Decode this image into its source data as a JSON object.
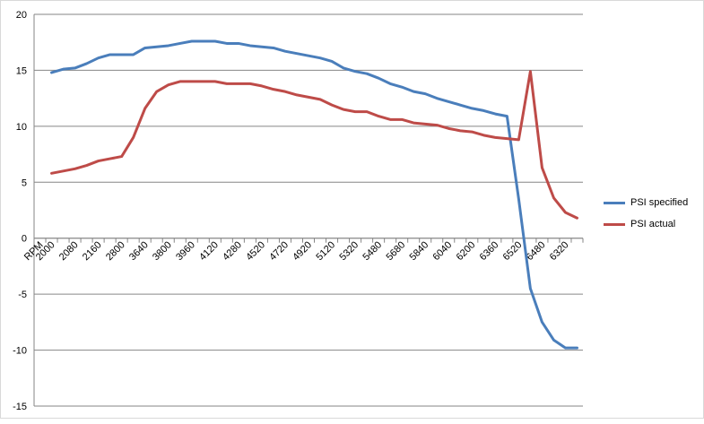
{
  "chart_data": {
    "type": "line",
    "title": "",
    "xlabel": "",
    "ylabel": "",
    "categories": [
      "RPM",
      "2000",
      "",
      "2080",
      "",
      "2160",
      "",
      "2800",
      "",
      "3640",
      "",
      "3800",
      "",
      "3960",
      "",
      "4120",
      "",
      "4280",
      "",
      "4520",
      "",
      "4720",
      "",
      "4920",
      "",
      "5120",
      "",
      "5320",
      "",
      "5480",
      "",
      "5680",
      "",
      "5840",
      "",
      "6040",
      "",
      "6200",
      "",
      "6360",
      "",
      "6520",
      "",
      "6480",
      "",
      "6320",
      ""
    ],
    "ylim": [
      -15,
      20
    ],
    "yticks": [
      "-15",
      "-10",
      "-5",
      "0",
      "5",
      "10",
      "15",
      "20"
    ],
    "yticks_values": [
      -15,
      -10,
      -5,
      0,
      5,
      10,
      15,
      20
    ],
    "grid": true,
    "legend_position": "right",
    "series": [
      {
        "name": "PSI specified",
        "color": "#4a7ebb",
        "values": [
          null,
          14.8,
          15.1,
          15.2,
          15.6,
          16.1,
          16.4,
          16.4,
          16.4,
          17.0,
          17.1,
          17.2,
          17.4,
          17.6,
          17.6,
          17.6,
          17.4,
          17.4,
          17.2,
          17.1,
          17.0,
          16.7,
          16.5,
          16.3,
          16.1,
          15.8,
          15.2,
          14.9,
          14.7,
          14.3,
          13.8,
          13.5,
          13.1,
          12.9,
          12.5,
          12.2,
          11.9,
          11.6,
          11.4,
          11.1,
          10.9,
          3.5,
          -4.5,
          -7.5,
          -9.1,
          -9.8,
          -9.8
        ]
      },
      {
        "name": "PSI actual",
        "color": "#be4b48",
        "values": [
          null,
          5.8,
          6.0,
          6.2,
          6.5,
          6.9,
          7.1,
          7.3,
          9.0,
          11.6,
          13.1,
          13.7,
          14.0,
          14.0,
          14.0,
          14.0,
          13.8,
          13.8,
          13.8,
          13.6,
          13.3,
          13.1,
          12.8,
          12.6,
          12.4,
          11.9,
          11.5,
          11.3,
          11.3,
          10.9,
          10.6,
          10.6,
          10.3,
          10.2,
          10.1,
          9.8,
          9.6,
          9.5,
          9.2,
          9.0,
          8.9,
          8.8,
          14.9,
          6.3,
          3.6,
          2.3,
          1.8
        ]
      }
    ]
  }
}
